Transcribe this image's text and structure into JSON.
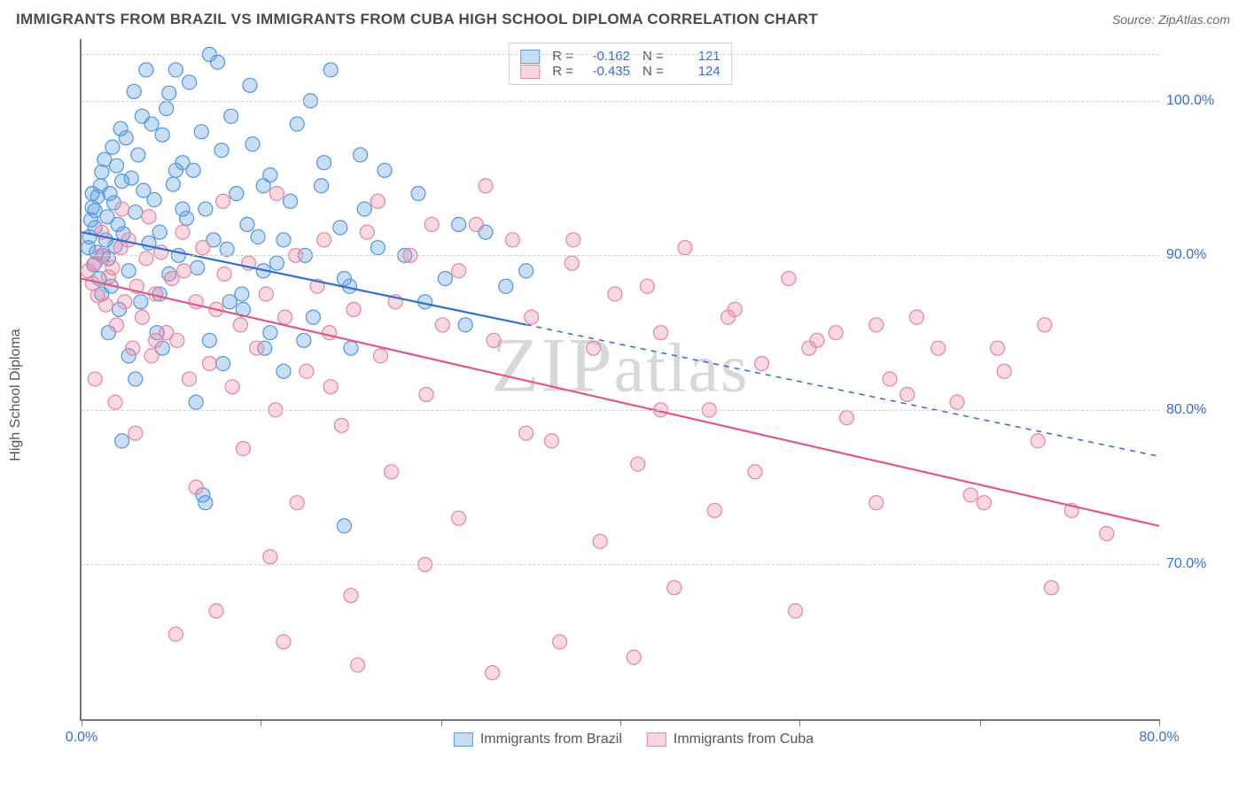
{
  "header": {
    "title": "IMMIGRANTS FROM BRAZIL VS IMMIGRANTS FROM CUBA HIGH SCHOOL DIPLOMA CORRELATION CHART",
    "source": "Source: ZipAtlas.com"
  },
  "ylabel": "High School Diploma",
  "watermark": "ZIPatlas",
  "chart": {
    "type": "scatter",
    "xlim": [
      0,
      80
    ],
    "ylim": [
      60,
      104
    ],
    "yticks": [
      70,
      80,
      90,
      100
    ],
    "ytick_labels": [
      "70.0%",
      "80.0%",
      "90.0%",
      "100.0%"
    ],
    "xticks": [
      0,
      13.3,
      26.7,
      40,
      53.3,
      66.7,
      80
    ],
    "xtick_labels_shown": {
      "0": "0.0%",
      "80": "80.0%"
    },
    "background_color": "#ffffff",
    "grid_color": "#d0d0d0",
    "axis_color": "#777777",
    "tick_label_color": "#3a6bd6",
    "marker_radius": 8,
    "marker_fill_opacity": 0.32,
    "marker_stroke_width": 1.3,
    "line_width": 2.2
  },
  "series": [
    {
      "key": "brazil",
      "label": "Immigrants from Brazil",
      "color": "#5a9be0",
      "line_color": "#2f6fd4",
      "R": "-0.162",
      "N": "121",
      "trend": {
        "x1": 0,
        "y1": 91.5,
        "x2": 80,
        "y2": 77,
        "solid_until_x": 33
      },
      "points": [
        [
          0.5,
          90.5
        ],
        [
          0.6,
          91.2
        ],
        [
          0.7,
          92.3
        ],
        [
          0.8,
          93.1
        ],
        [
          0.9,
          89.4
        ],
        [
          1.0,
          91.8
        ],
        [
          1.0,
          92.9
        ],
        [
          1.1,
          90.2
        ],
        [
          1.2,
          93.8
        ],
        [
          1.3,
          88.5
        ],
        [
          1.4,
          94.5
        ],
        [
          1.5,
          95.4
        ],
        [
          1.6,
          90.0
        ],
        [
          1.7,
          96.2
        ],
        [
          1.8,
          91.0
        ],
        [
          1.9,
          92.5
        ],
        [
          2.0,
          89.8
        ],
        [
          2.1,
          94.0
        ],
        [
          2.2,
          88.0
        ],
        [
          2.3,
          97.0
        ],
        [
          2.4,
          93.4
        ],
        [
          2.5,
          90.6
        ],
        [
          2.6,
          95.8
        ],
        [
          2.7,
          92.0
        ],
        [
          2.8,
          86.5
        ],
        [
          2.9,
          98.2
        ],
        [
          3.0,
          94.8
        ],
        [
          3.1,
          91.4
        ],
        [
          3.3,
          97.6
        ],
        [
          3.5,
          89.0
        ],
        [
          3.7,
          95.0
        ],
        [
          3.9,
          100.6
        ],
        [
          4.0,
          92.8
        ],
        [
          4.2,
          96.5
        ],
        [
          4.4,
          87.0
        ],
        [
          4.6,
          94.2
        ],
        [
          4.8,
          102.0
        ],
        [
          5.0,
          90.8
        ],
        [
          5.2,
          98.5
        ],
        [
          5.4,
          93.6
        ],
        [
          5.6,
          85.0
        ],
        [
          5.8,
          91.5
        ],
        [
          6.0,
          97.8
        ],
        [
          6.3,
          99.5
        ],
        [
          6.5,
          88.8
        ],
        [
          6.8,
          94.6
        ],
        [
          7.0,
          102.0
        ],
        [
          7.2,
          90.0
        ],
        [
          7.5,
          96.0
        ],
        [
          7.8,
          92.4
        ],
        [
          8.0,
          101.2
        ],
        [
          8.3,
          95.5
        ],
        [
          8.6,
          89.2
        ],
        [
          8.9,
          98.0
        ],
        [
          9.2,
          93.0
        ],
        [
          9.5,
          84.5
        ],
        [
          9.8,
          91.0
        ],
        [
          10.1,
          102.5
        ],
        [
          10.4,
          96.8
        ],
        [
          10.8,
          90.4
        ],
        [
          11.1,
          99.0
        ],
        [
          11.5,
          94.0
        ],
        [
          11.9,
          87.5
        ],
        [
          12.3,
          92.0
        ],
        [
          12.7,
          97.2
        ],
        [
          13.1,
          91.2
        ],
        [
          13.6,
          84.0
        ],
        [
          14.0,
          95.2
        ],
        [
          14.5,
          89.5
        ],
        [
          15.0,
          82.5
        ],
        [
          15.5,
          93.5
        ],
        [
          16.0,
          98.5
        ],
        [
          16.6,
          90.0
        ],
        [
          17.2,
          86.0
        ],
        [
          17.8,
          94.5
        ],
        [
          18.5,
          102.0
        ],
        [
          19.2,
          91.8
        ],
        [
          19.9,
          88.0
        ],
        [
          20.7,
          96.5
        ],
        [
          3.0,
          78.0
        ],
        [
          4.0,
          82.0
        ],
        [
          6.0,
          84.0
        ],
        [
          8.5,
          80.5
        ],
        [
          9.0,
          74.5
        ],
        [
          9.2,
          74.0
        ],
        [
          10.5,
          83.0
        ],
        [
          12.0,
          86.5
        ],
        [
          13.5,
          89.0
        ],
        [
          15.0,
          91.0
        ],
        [
          16.5,
          84.5
        ],
        [
          18.0,
          96.0
        ],
        [
          19.5,
          88.5
        ],
        [
          21.0,
          93.0
        ],
        [
          22.5,
          95.5
        ],
        [
          24.0,
          90.0
        ],
        [
          25.5,
          87.0
        ],
        [
          14.0,
          85.0
        ],
        [
          11.0,
          87.0
        ],
        [
          7.5,
          93.0
        ],
        [
          19.5,
          72.5
        ],
        [
          5.8,
          87.5
        ],
        [
          27.0,
          88.5
        ],
        [
          28.5,
          85.5
        ],
        [
          30.0,
          91.5
        ],
        [
          31.5,
          88.0
        ],
        [
          33.0,
          89.0
        ],
        [
          3.5,
          83.5
        ],
        [
          2.0,
          85.0
        ],
        [
          1.5,
          87.5
        ],
        [
          0.8,
          94.0
        ],
        [
          6.5,
          100.5
        ],
        [
          9.5,
          103.0
        ],
        [
          12.5,
          101.0
        ],
        [
          4.5,
          99.0
        ],
        [
          7.0,
          95.5
        ],
        [
          13.5,
          94.5
        ],
        [
          17.0,
          100.0
        ],
        [
          20.0,
          84.0
        ],
        [
          22.0,
          90.5
        ],
        [
          25.0,
          94.0
        ],
        [
          28.0,
          92.0
        ]
      ]
    },
    {
      "key": "cuba",
      "label": "Immigrants from Cuba",
      "color": "#e88aa3",
      "line_color": "#e05a80",
      "R": "-0.435",
      "N": "124",
      "trend": {
        "x1": 0,
        "y1": 88.5,
        "x2": 80,
        "y2": 72.5,
        "solid_until_x": 80
      },
      "points": [
        [
          0.5,
          89.0
        ],
        [
          0.8,
          88.2
        ],
        [
          1.0,
          89.5
        ],
        [
          1.2,
          87.4
        ],
        [
          1.5,
          90.0
        ],
        [
          1.8,
          86.8
        ],
        [
          2.0,
          88.6
        ],
        [
          2.3,
          89.2
        ],
        [
          2.6,
          85.5
        ],
        [
          2.9,
          90.5
        ],
        [
          3.2,
          87.0
        ],
        [
          3.5,
          91.0
        ],
        [
          3.8,
          84.0
        ],
        [
          4.1,
          88.0
        ],
        [
          4.5,
          86.0
        ],
        [
          4.8,
          89.8
        ],
        [
          5.2,
          83.5
        ],
        [
          5.5,
          87.5
        ],
        [
          5.9,
          90.2
        ],
        [
          6.3,
          85.0
        ],
        [
          6.7,
          88.5
        ],
        [
          7.1,
          84.5
        ],
        [
          7.6,
          89.0
        ],
        [
          8.0,
          82.0
        ],
        [
          8.5,
          87.0
        ],
        [
          9.0,
          90.5
        ],
        [
          9.5,
          83.0
        ],
        [
          10.0,
          86.5
        ],
        [
          10.6,
          88.8
        ],
        [
          11.2,
          81.5
        ],
        [
          11.8,
          85.5
        ],
        [
          12.4,
          89.5
        ],
        [
          13.0,
          84.0
        ],
        [
          13.7,
          87.5
        ],
        [
          14.4,
          80.0
        ],
        [
          15.1,
          86.0
        ],
        [
          15.9,
          90.0
        ],
        [
          16.7,
          82.5
        ],
        [
          17.5,
          88.0
        ],
        [
          18.4,
          85.0
        ],
        [
          19.3,
          79.0
        ],
        [
          20.2,
          86.5
        ],
        [
          21.2,
          91.5
        ],
        [
          22.2,
          83.5
        ],
        [
          23.3,
          87.0
        ],
        [
          24.4,
          90.0
        ],
        [
          25.6,
          81.0
        ],
        [
          26.8,
          85.5
        ],
        [
          28.0,
          89.0
        ],
        [
          29.3,
          92.0
        ],
        [
          30.6,
          84.5
        ],
        [
          32.0,
          91.0
        ],
        [
          33.4,
          86.0
        ],
        [
          34.9,
          78.0
        ],
        [
          36.4,
          89.5
        ],
        [
          38.0,
          84.0
        ],
        [
          39.6,
          87.5
        ],
        [
          41.3,
          76.5
        ],
        [
          43.0,
          85.0
        ],
        [
          44.8,
          90.5
        ],
        [
          46.6,
          80.0
        ],
        [
          48.5,
          86.5
        ],
        [
          50.5,
          83.0
        ],
        [
          52.5,
          88.5
        ],
        [
          54.6,
          84.5
        ],
        [
          56.8,
          79.5
        ],
        [
          59.0,
          85.5
        ],
        [
          61.3,
          81.0
        ],
        [
          63.6,
          84.0
        ],
        [
          66.0,
          74.5
        ],
        [
          68.5,
          82.5
        ],
        [
          71.0,
          78.0
        ],
        [
          73.5,
          73.5
        ],
        [
          76.1,
          72.0
        ],
        [
          1.0,
          82.0
        ],
        [
          2.5,
          80.5
        ],
        [
          4.0,
          78.5
        ],
        [
          5.5,
          84.5
        ],
        [
          7.0,
          65.5
        ],
        [
          8.5,
          75.0
        ],
        [
          10.0,
          67.0
        ],
        [
          12.0,
          77.5
        ],
        [
          14.0,
          70.5
        ],
        [
          16.0,
          74.0
        ],
        [
          18.5,
          81.5
        ],
        [
          20.5,
          63.5
        ],
        [
          23.0,
          76.0
        ],
        [
          25.5,
          70.0
        ],
        [
          28.0,
          73.0
        ],
        [
          30.5,
          63.0
        ],
        [
          33.0,
          78.5
        ],
        [
          35.5,
          65.0
        ],
        [
          38.5,
          71.5
        ],
        [
          41.0,
          64.0
        ],
        [
          44.0,
          68.5
        ],
        [
          47.0,
          73.5
        ],
        [
          50.0,
          76.0
        ],
        [
          53.0,
          67.0
        ],
        [
          56.0,
          85.0
        ],
        [
          59.0,
          74.0
        ],
        [
          62.0,
          86.0
        ],
        [
          65.0,
          80.5
        ],
        [
          68.0,
          84.0
        ],
        [
          71.5,
          85.5
        ],
        [
          10.5,
          93.5
        ],
        [
          14.5,
          94.0
        ],
        [
          18.0,
          91.0
        ],
        [
          22.0,
          93.5
        ],
        [
          26.0,
          92.0
        ],
        [
          30.0,
          94.5
        ],
        [
          1.5,
          91.5
        ],
        [
          3.0,
          93.0
        ],
        [
          5.0,
          92.5
        ],
        [
          7.5,
          91.5
        ],
        [
          36.5,
          91.0
        ],
        [
          42.0,
          88.0
        ],
        [
          48.0,
          86.0
        ],
        [
          54.0,
          84.0
        ],
        [
          60.0,
          82.0
        ],
        [
          67.0,
          74.0
        ],
        [
          72.0,
          68.5
        ],
        [
          20.0,
          68.0
        ],
        [
          15.0,
          65.0
        ],
        [
          43.0,
          80.0
        ]
      ]
    }
  ],
  "legend_bottom": [
    {
      "key": "brazil",
      "label": "Immigrants from Brazil"
    },
    {
      "key": "cuba",
      "label": "Immigrants from Cuba"
    }
  ]
}
